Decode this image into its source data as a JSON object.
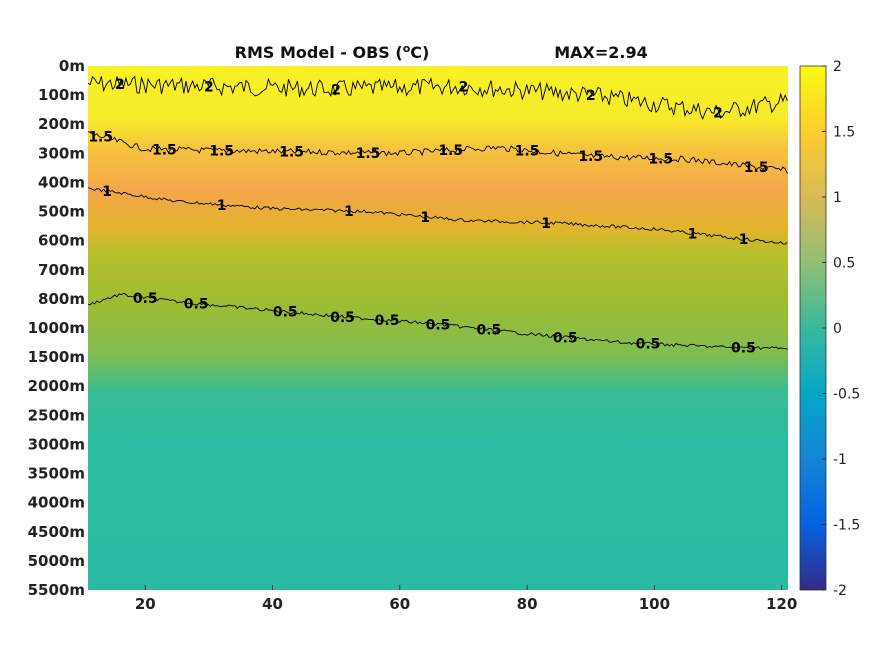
{
  "chart_data": {
    "type": "heatmap",
    "title": "RMS Model - OBS (",
    "title_unit_super": "o",
    "title_unit_end": "C)",
    "max_label": "MAX=2.94",
    "xlim": [
      11,
      121
    ],
    "x_ticks": [
      20,
      40,
      60,
      80,
      100,
      120
    ],
    "y_tick_labels": [
      "0m",
      "100m",
      "200m",
      "300m",
      "400m",
      "500m",
      "600m",
      "700m",
      "800m",
      "1000m",
      "1500m",
      "2000m",
      "2500m",
      "3000m",
      "3500m",
      "4000m",
      "4500m",
      "5000m",
      "5500m"
    ],
    "colorbar": {
      "colormap": "parula",
      "range": [
        -2,
        2
      ],
      "ticks": [
        "2",
        "1.5",
        "1",
        "0.5",
        "0",
        "-0.5",
        "-1",
        "-1.5",
        "-2"
      ]
    },
    "contour_levels": [
      2,
      1.5,
      1,
      0.5
    ],
    "contours": [
      {
        "level": 2,
        "label": "2",
        "depth_index": [
          [
            11,
            0.6
          ],
          [
            30,
            0.7
          ],
          [
            50,
            0.8
          ],
          [
            70,
            0.7
          ],
          [
            90,
            1.0
          ],
          [
            110,
            1.6
          ],
          [
            121,
            1.2
          ]
        ]
      },
      {
        "level": 1.5,
        "label": "1.5",
        "depth_index": [
          [
            11,
            2.3
          ],
          [
            20,
            2.85
          ],
          [
            30,
            2.9
          ],
          [
            45,
            2.95
          ],
          [
            60,
            3.0
          ],
          [
            75,
            2.8
          ],
          [
            90,
            3.1
          ],
          [
            105,
            3.2
          ],
          [
            121,
            3.6
          ]
        ]
      },
      {
        "level": 1,
        "label": "1",
        "depth_index": [
          [
            11,
            4.2
          ],
          [
            25,
            4.65
          ],
          [
            40,
            4.9
          ],
          [
            55,
            5.0
          ],
          [
            70,
            5.3
          ],
          [
            85,
            5.4
          ],
          [
            100,
            5.6
          ],
          [
            112,
            5.9
          ],
          [
            121,
            6.1
          ]
        ]
      },
      {
        "level": 0.5,
        "label": "0.5",
        "depth_index": [
          [
            11,
            8.2
          ],
          [
            16,
            7.85
          ],
          [
            25,
            8.1
          ],
          [
            35,
            8.3
          ],
          [
            50,
            8.6
          ],
          [
            65,
            8.85
          ],
          [
            80,
            9.2
          ],
          [
            95,
            9.5
          ],
          [
            110,
            9.65
          ],
          [
            121,
            9.7
          ]
        ]
      }
    ],
    "contour_label_positions": [
      {
        "level": "2",
        "x": [
          16,
          30,
          50,
          70,
          90,
          110
        ]
      },
      {
        "level": "1.5",
        "x": [
          13,
          23,
          32,
          43,
          55,
          68,
          80,
          90,
          101,
          116
        ]
      },
      {
        "level": "1",
        "x": [
          14,
          32,
          52,
          64,
          83,
          106,
          114
        ]
      },
      {
        "level": "0.5",
        "x": [
          20,
          28,
          42,
          51,
          58,
          66,
          74,
          86,
          99,
          114
        ]
      }
    ]
  }
}
